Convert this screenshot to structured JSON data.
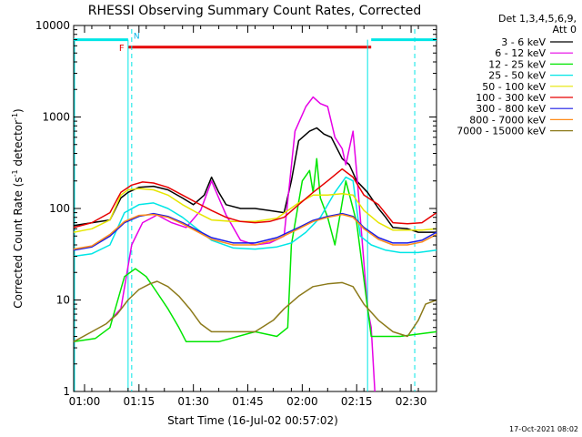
{
  "chart_data": {
    "type": "line",
    "title": "RHESSI Observing Summary Count Rates, Corrected",
    "xlabel": "Start Time (16-Jul-02 00:57:02)",
    "ylabel_main": "Corrected Count Rate (s",
    "ylabel_sup1": "-1",
    "ylabel_mid": " detector",
    "ylabel_sup2": "-1",
    "ylabel_end": ")",
    "x_unit": "minutes after 00:57:02",
    "xlim": [
      0,
      100
    ],
    "ylim": [
      1,
      10000
    ],
    "y_scale": "log",
    "x_ticks": [
      {
        "value": 3,
        "label": "01:00"
      },
      {
        "value": 18,
        "label": "01:15"
      },
      {
        "value": 33,
        "label": "01:30"
      },
      {
        "value": 48,
        "label": "01:45"
      },
      {
        "value": 63,
        "label": "02:00"
      },
      {
        "value": 78,
        "label": "02:15"
      },
      {
        "value": 93,
        "label": "02:30"
      }
    ],
    "y_ticks": [
      {
        "value": 1,
        "label": "1"
      },
      {
        "value": 10,
        "label": "10"
      },
      {
        "value": 100,
        "label": "100"
      },
      {
        "value": 1000,
        "label": "1000"
      },
      {
        "value": 10000,
        "label": "10000"
      }
    ],
    "legend_header": [
      "Det 1,3,4,5,6,9,",
      "Att 0"
    ],
    "series": [
      {
        "name": "3 - 6 keV",
        "color": "#000000",
        "points": [
          [
            0,
            65
          ],
          [
            10,
            75
          ],
          [
            13,
            130
          ],
          [
            15,
            150
          ],
          [
            18,
            170
          ],
          [
            22,
            175
          ],
          [
            26,
            160
          ],
          [
            30,
            130
          ],
          [
            33,
            110
          ],
          [
            36,
            140
          ],
          [
            38,
            220
          ],
          [
            40,
            150
          ],
          [
            42,
            110
          ],
          [
            46,
            100
          ],
          [
            50,
            100
          ],
          [
            54,
            95
          ],
          [
            58,
            90
          ],
          [
            60,
            200
          ],
          [
            62,
            550
          ],
          [
            65,
            700
          ],
          [
            67,
            760
          ],
          [
            69,
            650
          ],
          [
            71,
            600
          ],
          [
            74,
            350
          ],
          [
            76,
            300
          ],
          [
            78,
            200
          ],
          [
            81,
            150
          ],
          [
            84,
            100
          ],
          [
            86,
            80
          ],
          [
            88,
            62
          ],
          [
            92,
            60
          ],
          [
            95,
            55
          ],
          [
            100,
            55
          ]
        ]
      },
      {
        "name": "6 - 12 keV",
        "color": "#e600e6",
        "points": [
          [
            10,
            6
          ],
          [
            13,
            8
          ],
          [
            16,
            40
          ],
          [
            19,
            70
          ],
          [
            23,
            85
          ],
          [
            27,
            70
          ],
          [
            31,
            62
          ],
          [
            35,
            95
          ],
          [
            38,
            200
          ],
          [
            40,
            130
          ],
          [
            42,
            85
          ],
          [
            46,
            45
          ],
          [
            50,
            40
          ],
          [
            54,
            42
          ],
          [
            58,
            50
          ],
          [
            61,
            700
          ],
          [
            64,
            1300
          ],
          [
            66,
            1650
          ],
          [
            68,
            1400
          ],
          [
            70,
            1300
          ],
          [
            72,
            600
          ],
          [
            74,
            450
          ],
          [
            75,
            300
          ],
          [
            77,
            700
          ],
          [
            78,
            250
          ],
          [
            81,
            8
          ],
          [
            82,
            5
          ],
          [
            83,
            1
          ]
        ]
      },
      {
        "name": "12 - 25 keV",
        "color": "#00e600",
        "points": [
          [
            0,
            3.5
          ],
          [
            6,
            3.8
          ],
          [
            10,
            5
          ],
          [
            14,
            18
          ],
          [
            17,
            22
          ],
          [
            20,
            18
          ],
          [
            23,
            12
          ],
          [
            26,
            8
          ],
          [
            29,
            5
          ],
          [
            31,
            3.5
          ],
          [
            40,
            3.5
          ],
          [
            50,
            4.5
          ],
          [
            56,
            4
          ],
          [
            59,
            5
          ],
          [
            60,
            40
          ],
          [
            63,
            200
          ],
          [
            65,
            260
          ],
          [
            66,
            150
          ],
          [
            67,
            350
          ],
          [
            68,
            130
          ],
          [
            70,
            80
          ],
          [
            72,
            40
          ],
          [
            75,
            200
          ],
          [
            77,
            100
          ],
          [
            78,
            70
          ],
          [
            82,
            4
          ],
          [
            90,
            4
          ],
          [
            100,
            4.5
          ]
        ]
      },
      {
        "name": "25 - 50 keV",
        "color": "#00e6e6",
        "points": [
          [
            0,
            30
          ],
          [
            5,
            32
          ],
          [
            10,
            40
          ],
          [
            14,
            90
          ],
          [
            18,
            110
          ],
          [
            22,
            115
          ],
          [
            26,
            100
          ],
          [
            30,
            80
          ],
          [
            34,
            60
          ],
          [
            38,
            45
          ],
          [
            44,
            37
          ],
          [
            50,
            36
          ],
          [
            56,
            38
          ],
          [
            60,
            42
          ],
          [
            64,
            55
          ],
          [
            68,
            80
          ],
          [
            72,
            150
          ],
          [
            75,
            220
          ],
          [
            77,
            200
          ],
          [
            79,
            50
          ],
          [
            82,
            40
          ],
          [
            86,
            35
          ],
          [
            90,
            33
          ],
          [
            95,
            33
          ],
          [
            100,
            35
          ]
        ]
      },
      {
        "name": "50 - 100 keV",
        "color": "#e6e600",
        "points": [
          [
            0,
            55
          ],
          [
            5,
            60
          ],
          [
            10,
            75
          ],
          [
            13,
            140
          ],
          [
            15,
            160
          ],
          [
            18,
            165
          ],
          [
            22,
            160
          ],
          [
            26,
            140
          ],
          [
            30,
            110
          ],
          [
            34,
            90
          ],
          [
            38,
            75
          ],
          [
            44,
            72
          ],
          [
            50,
            72
          ],
          [
            56,
            78
          ],
          [
            62,
            115
          ],
          [
            66,
            140
          ],
          [
            70,
            140
          ],
          [
            74,
            145
          ],
          [
            77,
            140
          ],
          [
            80,
            95
          ],
          [
            84,
            70
          ],
          [
            88,
            58
          ],
          [
            92,
            58
          ],
          [
            96,
            58
          ],
          [
            100,
            60
          ]
        ]
      },
      {
        "name": "100 - 300 keV",
        "color": "#e60000",
        "points": [
          [
            0,
            62
          ],
          [
            5,
            70
          ],
          [
            10,
            90
          ],
          [
            13,
            150
          ],
          [
            16,
            180
          ],
          [
            19,
            195
          ],
          [
            22,
            190
          ],
          [
            26,
            170
          ],
          [
            30,
            140
          ],
          [
            34,
            115
          ],
          [
            38,
            95
          ],
          [
            42,
            80
          ],
          [
            46,
            72
          ],
          [
            50,
            70
          ],
          [
            54,
            72
          ],
          [
            58,
            80
          ],
          [
            62,
            110
          ],
          [
            66,
            150
          ],
          [
            70,
            200
          ],
          [
            74,
            270
          ],
          [
            77,
            220
          ],
          [
            80,
            140
          ],
          [
            84,
            110
          ],
          [
            88,
            70
          ],
          [
            92,
            68
          ],
          [
            96,
            70
          ],
          [
            100,
            90
          ]
        ]
      },
      {
        "name": "300 - 800 keV",
        "color": "#1a1ae6",
        "points": [
          [
            0,
            35
          ],
          [
            5,
            38
          ],
          [
            10,
            50
          ],
          [
            14,
            70
          ],
          [
            18,
            82
          ],
          [
            22,
            88
          ],
          [
            26,
            82
          ],
          [
            30,
            70
          ],
          [
            34,
            58
          ],
          [
            38,
            48
          ],
          [
            44,
            42
          ],
          [
            50,
            42
          ],
          [
            56,
            48
          ],
          [
            62,
            62
          ],
          [
            66,
            74
          ],
          [
            70,
            82
          ],
          [
            74,
            88
          ],
          [
            77,
            82
          ],
          [
            80,
            62
          ],
          [
            84,
            48
          ],
          [
            88,
            42
          ],
          [
            92,
            42
          ],
          [
            96,
            45
          ],
          [
            100,
            55
          ]
        ]
      },
      {
        "name": "800 - 7000 keV",
        "color": "#ff8c1a",
        "points": [
          [
            0,
            36
          ],
          [
            5,
            39
          ],
          [
            10,
            52
          ],
          [
            14,
            72
          ],
          [
            18,
            84
          ],
          [
            22,
            86
          ],
          [
            26,
            80
          ],
          [
            30,
            68
          ],
          [
            34,
            56
          ],
          [
            38,
            46
          ],
          [
            44,
            40
          ],
          [
            50,
            40
          ],
          [
            56,
            46
          ],
          [
            62,
            60
          ],
          [
            66,
            72
          ],
          [
            70,
            80
          ],
          [
            74,
            86
          ],
          [
            77,
            80
          ],
          [
            80,
            60
          ],
          [
            84,
            46
          ],
          [
            88,
            40
          ],
          [
            92,
            40
          ],
          [
            96,
            43
          ],
          [
            100,
            52
          ]
        ]
      },
      {
        "name": "7000 - 15000 keV",
        "color": "#8c7a1a",
        "points": [
          [
            0,
            3.5
          ],
          [
            5,
            4.5
          ],
          [
            9,
            5.5
          ],
          [
            12,
            7
          ],
          [
            15,
            10
          ],
          [
            18,
            13
          ],
          [
            21,
            15
          ],
          [
            23,
            16
          ],
          [
            26,
            14
          ],
          [
            29,
            11
          ],
          [
            32,
            8
          ],
          [
            35,
            5.5
          ],
          [
            38,
            4.5
          ],
          [
            44,
            4.5
          ],
          [
            50,
            4.5
          ],
          [
            55,
            6
          ],
          [
            58,
            8
          ],
          [
            62,
            11
          ],
          [
            66,
            14
          ],
          [
            70,
            15
          ],
          [
            74,
            15.5
          ],
          [
            77,
            14
          ],
          [
            80,
            9
          ],
          [
            84,
            6
          ],
          [
            88,
            4.5
          ],
          [
            92,
            4
          ],
          [
            95,
            6
          ],
          [
            97,
            9
          ],
          [
            100,
            10
          ]
        ]
      }
    ],
    "annotations": {
      "f_label": "F",
      "n_label": "N",
      "cyan_band_y": 7000,
      "red_band_y": 5800,
      "cyan_segments": [
        [
          0,
          15
        ],
        [
          82,
          100
        ]
      ],
      "red_segment": [
        15,
        82
      ],
      "dashed_lines": [
        16,
        94
      ],
      "solid_lines": [
        15,
        81
      ]
    },
    "footer": "17-Oct-2021 08:02"
  }
}
